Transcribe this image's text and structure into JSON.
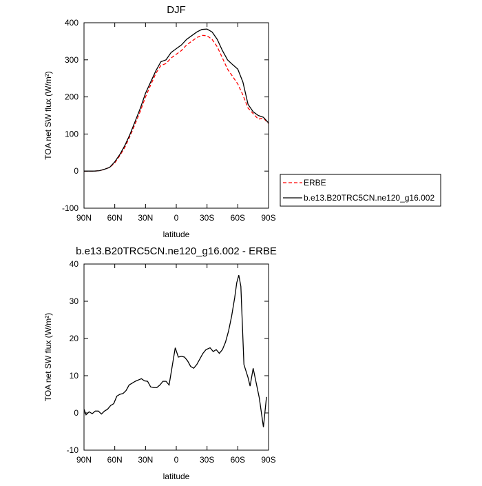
{
  "chart_data": [
    {
      "type": "line",
      "title": "DJF",
      "xlabel": "latitude",
      "ylabel": "TOA net SW flux (W/m²)",
      "x": [
        90,
        85,
        80,
        75,
        70,
        65,
        60,
        55,
        50,
        45,
        40,
        35,
        30,
        25,
        20,
        15,
        10,
        5,
        0,
        -5,
        -10,
        -15,
        -20,
        -25,
        -30,
        -35,
        -40,
        -45,
        -50,
        -55,
        -60,
        -65,
        -70,
        -75,
        -80,
        -85,
        -90
      ],
      "series": [
        {
          "name": "ERBE",
          "color": "#ff0000",
          "dash": true,
          "values": [
            0,
            0,
            0,
            1,
            5,
            10,
            22,
            42,
            65,
            95,
            128,
            162,
            200,
            232,
            263,
            285,
            290,
            305,
            315,
            325,
            340,
            350,
            360,
            366,
            365,
            355,
            335,
            305,
            275,
            255,
            235,
            205,
            170,
            155,
            140,
            143,
            128
          ]
        },
        {
          "name": "b.e13.B20TRC5CN.ne120_g16.002",
          "color": "#000000",
          "dash": false,
          "values": [
            0,
            0,
            0,
            1,
            5,
            10,
            25,
            45,
            70,
            100,
            135,
            170,
            210,
            240,
            270,
            295,
            300,
            320,
            330,
            340,
            355,
            365,
            375,
            382,
            383,
            375,
            355,
            325,
            300,
            287,
            275,
            240,
            180,
            160,
            150,
            145,
            130
          ]
        }
      ],
      "xlim": [
        90,
        -90
      ],
      "xticks": [
        {
          "value": 90,
          "label": "90N"
        },
        {
          "value": 60,
          "label": "60N"
        },
        {
          "value": 30,
          "label": "30N"
        },
        0,
        {
          "value": -30,
          "label": "30S"
        },
        {
          "value": -60,
          "label": "60S"
        },
        {
          "value": -90,
          "label": "90S"
        }
      ],
      "ylim": [
        -100,
        400
      ],
      "yticks": [
        -100,
        0,
        100,
        200,
        300,
        400
      ],
      "legend": "right"
    },
    {
      "type": "line",
      "title": "b.e13.B20TRC5CN.ne120_g16.002 - ERBE",
      "xlabel": "latitude",
      "ylabel": "TOA net SW flux (W/m²)",
      "x": [
        90,
        88,
        85,
        82,
        79,
        76,
        73,
        70,
        67,
        64,
        61,
        58,
        55,
        52,
        49,
        46,
        43,
        40,
        34,
        31,
        28,
        25,
        22,
        19,
        16,
        13,
        10,
        7,
        1,
        -2,
        -5,
        -8,
        -11,
        -14,
        -17,
        -20,
        -23,
        -26,
        -29,
        -33,
        -36,
        -39,
        -42,
        -45,
        -48,
        -51,
        -54,
        -57,
        -59,
        -61,
        -63,
        -66,
        -70,
        -72,
        -75,
        -78,
        -81,
        -85,
        -88
      ],
      "series": [
        {
          "name": "b.e13.B20TRC5CN.ne120_g16.002 - ERBE",
          "color": "#000000",
          "dash": false,
          "values": [
            1,
            -0.5,
            0.3,
            -0.2,
            0.5,
            0.5,
            -0.3,
            0.5,
            1,
            2,
            2.5,
            4.5,
            5,
            5.2,
            6,
            7.5,
            8,
            8.5,
            9.2,
            8.6,
            8.5,
            7,
            6.8,
            6.8,
            7.5,
            8.5,
            8.5,
            7.5,
            17.5,
            15,
            15.2,
            15,
            14,
            12.5,
            12,
            13,
            14.5,
            16,
            17,
            17.5,
            16.5,
            17,
            16,
            17,
            19,
            22,
            26,
            31,
            35,
            37,
            34,
            13,
            9.5,
            7.2,
            12,
            8,
            4,
            -3.8,
            4.3
          ]
        }
      ],
      "xlim": [
        90,
        -90
      ],
      "xticks": [
        {
          "value": 90,
          "label": "90N"
        },
        {
          "value": 60,
          "label": "60N"
        },
        {
          "value": 30,
          "label": "30N"
        },
        0,
        {
          "value": -30,
          "label": "30S"
        },
        {
          "value": -60,
          "label": "60S"
        },
        {
          "value": -90,
          "label": "90S"
        }
      ],
      "ylim": [
        -10,
        40
      ],
      "yticks": [
        -10,
        0,
        10,
        20,
        30,
        40
      ]
    }
  ]
}
